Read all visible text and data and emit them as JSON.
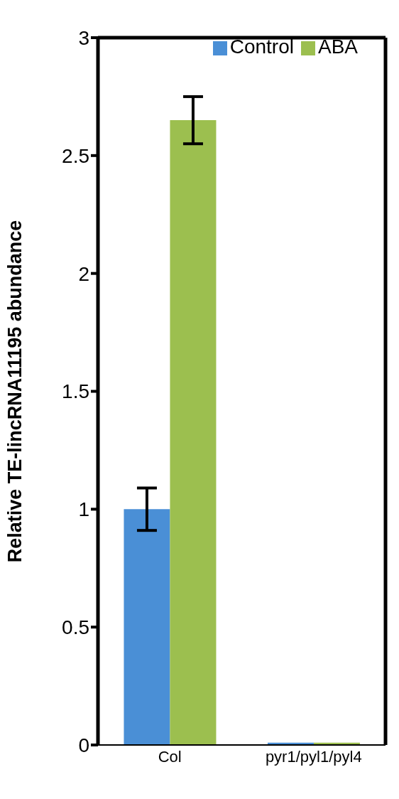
{
  "chart_data": {
    "type": "bar",
    "ylabel": "Relative TE-lincRNA11195 abundance",
    "categories": [
      "Col",
      "pyr1/pyl1/pyl4"
    ],
    "series": [
      {
        "name": "Control",
        "color": "#4a8fd6",
        "values": [
          1.0,
          0.01
        ],
        "errors": [
          0.09,
          null
        ]
      },
      {
        "name": "ABA",
        "color": "#9cbf4f",
        "values": [
          2.65,
          0.01
        ],
        "errors": [
          0.1,
          null
        ]
      }
    ],
    "ylim": [
      0,
      3
    ],
    "yticks": [
      0,
      0.5,
      1,
      1.5,
      2,
      2.5,
      3
    ],
    "grid": false,
    "legend": "top right"
  }
}
